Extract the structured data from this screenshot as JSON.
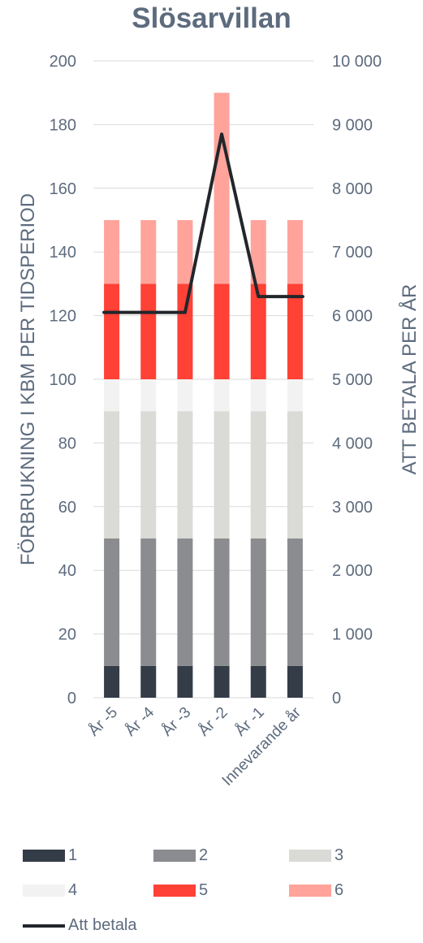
{
  "chart_data": {
    "type": "bar",
    "title": "Slösarvillan",
    "ylabel": "FÖRBRUKNING I KBM PER TIDSPERIOD",
    "y2label": "ATT BETALA PER ÅR",
    "ylim": [
      0,
      200
    ],
    "y2lim": [
      0,
      10000
    ],
    "yticks": [
      "0",
      "20",
      "40",
      "60",
      "80",
      "100",
      "120",
      "140",
      "160",
      "180",
      "200"
    ],
    "y2ticks": [
      "0",
      "1 000",
      "2 000",
      "3 000",
      "4 000",
      "5 000",
      "6 000",
      "7 000",
      "8 000",
      "9 000",
      "10 000"
    ],
    "categories": [
      "År -5",
      "År -4",
      "År -3",
      "År -2",
      "År -1",
      "Innevarande år"
    ],
    "stacked": true,
    "grid": true,
    "legend_position": "bottom",
    "series": [
      {
        "name": "1",
        "color": "#343c48",
        "values": [
          10,
          10,
          10,
          10,
          10,
          10
        ]
      },
      {
        "name": "2",
        "color": "#8a8c8f",
        "values": [
          40,
          40,
          40,
          40,
          40,
          40
        ]
      },
      {
        "name": "3",
        "color": "#dadad6",
        "values": [
          40,
          40,
          40,
          40,
          40,
          40
        ]
      },
      {
        "name": "4",
        "color": "#f2f2f2",
        "values": [
          10,
          10,
          10,
          10,
          10,
          10
        ]
      },
      {
        "name": "5",
        "color": "#ff4136",
        "values": [
          30,
          30,
          30,
          30,
          30,
          30
        ]
      },
      {
        "name": "6",
        "color": "#ffa39b",
        "values": [
          20,
          20,
          20,
          60,
          20,
          20
        ]
      }
    ],
    "line_series": {
      "name": "Att betala",
      "axis": "secondary",
      "color": "#22262b",
      "values": [
        6050,
        6050,
        6050,
        8850,
        6300,
        6300
      ]
    }
  }
}
